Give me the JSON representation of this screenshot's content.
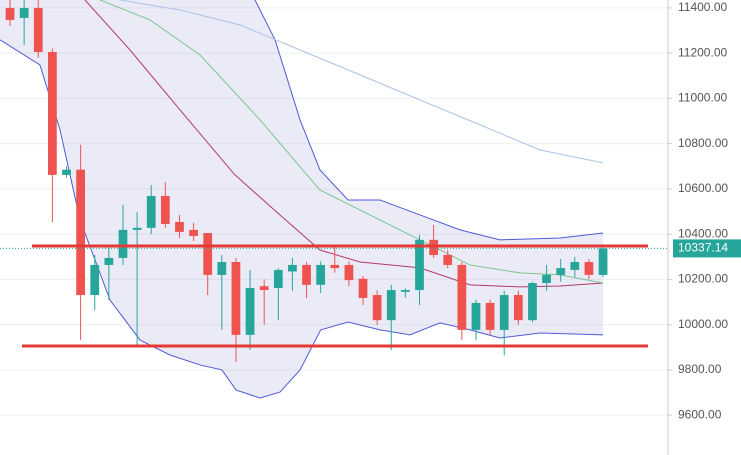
{
  "chart_data": {
    "type": "candlestick",
    "ylim": [
      9424,
      11435
    ],
    "xlim": [
      -0.71,
      46.6
    ],
    "yticks": [
      {
        "value": 9600,
        "label": "9600.00"
      },
      {
        "value": 9800,
        "label": "9800.00"
      },
      {
        "value": 10000,
        "label": "10000.00"
      },
      {
        "value": 10200,
        "label": "10200.00"
      },
      {
        "value": 10400,
        "label": "10400.00"
      },
      {
        "value": 10600,
        "label": "10600.00"
      },
      {
        "value": 10800,
        "label": "10800.00"
      },
      {
        "value": 11000,
        "label": "11000.00"
      },
      {
        "value": 11200,
        "label": "11200.00"
      },
      {
        "value": 11400,
        "label": "11400.00"
      }
    ],
    "grid": true,
    "up_color": "#26a69a",
    "down_color": "#ef5350",
    "open": [
      11400,
      11356,
      11400,
      11205,
      10662,
      10685,
      10131,
      10264,
      10295,
      10419,
      10428,
      10569,
      10454,
      10419,
      10405,
      10220,
      10277,
      9955,
      10170,
      10162,
      10235,
      10264,
      10176,
      10264,
      10264,
      10203,
      10131,
      10020,
      10145,
      10153,
      10375,
      10308,
      10264,
      9977,
      10096,
      9977,
      10131,
      10020,
      10184,
      10220,
      10242,
      10277,
      10220
    ],
    "high": [
      11435,
      11435,
      11435,
      11220,
      10700,
      10795,
      10308,
      10352,
      10530,
      10498,
      10617,
      10630,
      10485,
      10450,
      10405,
      10308,
      10295,
      10242,
      10200,
      10250,
      10295,
      10277,
      10280,
      10350,
      10280,
      10215,
      10152,
      10176,
      10160,
      10396,
      10441,
      10330,
      10277,
      10110,
      10110,
      10150,
      10150,
      10190,
      10264,
      10290,
      10300,
      10290,
      10352
    ],
    "low": [
      11320,
      11236,
      11180,
      10454,
      10650,
      9932,
      10065,
      10109,
      10264,
      9910,
      10400,
      10428,
      10383,
      10370,
      10131,
      9977,
      9835,
      9888,
      10000,
      10020,
      10150,
      10118,
      10140,
      10230,
      10170,
      10087,
      9998,
      9888,
      10120,
      10087,
      10295,
      10250,
      9932,
      9932,
      9955,
      9865,
      10000,
      10010,
      10150,
      10190,
      10210,
      10200,
      10210
    ],
    "close": [
      11347,
      11400,
      11205,
      10662,
      10685,
      10131,
      10264,
      10295,
      10419,
      10428,
      10569,
      10445,
      10410,
      10392,
      10220,
      10277,
      9955,
      10162,
      10153,
      10242,
      10264,
      10176,
      10264,
      10250,
      10197,
      10118,
      10020,
      10153,
      10153,
      10375,
      10308,
      10264,
      9977,
      10096,
      9977,
      10131,
      10020,
      10184,
      10220,
      10250,
      10277,
      10220,
      10337.14
    ],
    "band_fill": "rgba(110,110,200,0.14)",
    "overlays": [
      {
        "color": "#4f5bd5",
        "x": [
          17.35,
          18.77,
          20.54,
          21.95,
          23.94,
          26.2,
          29.04,
          31.87,
          34.7,
          38.95,
          42
        ],
        "values": [
          11435,
          11259,
          10905,
          10684,
          10551,
          10551,
          10485,
          10419,
          10375,
          10383,
          10405
        ]
      },
      {
        "color": "#4f5bd5",
        "x": [
          -0.71,
          2.12,
          3.54,
          4.96,
          7.08,
          9.21,
          11.33,
          13.46,
          15.01,
          16.01,
          17.71,
          19.12,
          20.54,
          22.0,
          23.94,
          26.2,
          28.33,
          30.45,
          32.58,
          34.7,
          37.54,
          42
        ],
        "values": [
          11259,
          11148,
          10861,
          10463,
          10109,
          9932,
          9866,
          9822,
          9800,
          9711,
          9676,
          9702,
          9800,
          9977,
          10012,
          9977,
          9955,
          10008,
          9977,
          9941,
          9963,
          9955
        ]
      },
      {
        "color": "#b2386e",
        "x": [
          5.31,
          8.5,
          12.04,
          15.93,
          19.12,
          21.95,
          24.79,
          29.04,
          32.58,
          36.12,
          38.95,
          42
        ],
        "values": [
          11435,
          11214,
          10949,
          10662,
          10485,
          10330,
          10277,
          10251,
          10176,
          10167,
          10171,
          10184
        ]
      },
      {
        "color": "#7cc48a",
        "x": [
          6.37,
          9.92,
          13.46,
          17.71,
          21.95,
          25.49,
          29.04,
          32.58,
          36.12,
          38.95,
          42
        ],
        "values": [
          11435,
          11347,
          11192,
          10905,
          10595,
          10485,
          10374,
          10264,
          10229,
          10220,
          10184
        ]
      },
      {
        "color": "#a8c4e8",
        "x": [
          7.79,
          12.04,
          16.29,
          20.54,
          24.79,
          29.04,
          33.29,
          37.54,
          42
        ],
        "values": [
          11435,
          11391,
          11325,
          11214,
          11104,
          10993,
          10883,
          10772,
          10715
        ]
      }
    ],
    "levels": [
      {
        "value": 10348,
        "color": "#e53935"
      },
      {
        "value": 9906,
        "color": "#e53935"
      }
    ],
    "last_price": 10337.14,
    "last_color": "#26a69a"
  }
}
